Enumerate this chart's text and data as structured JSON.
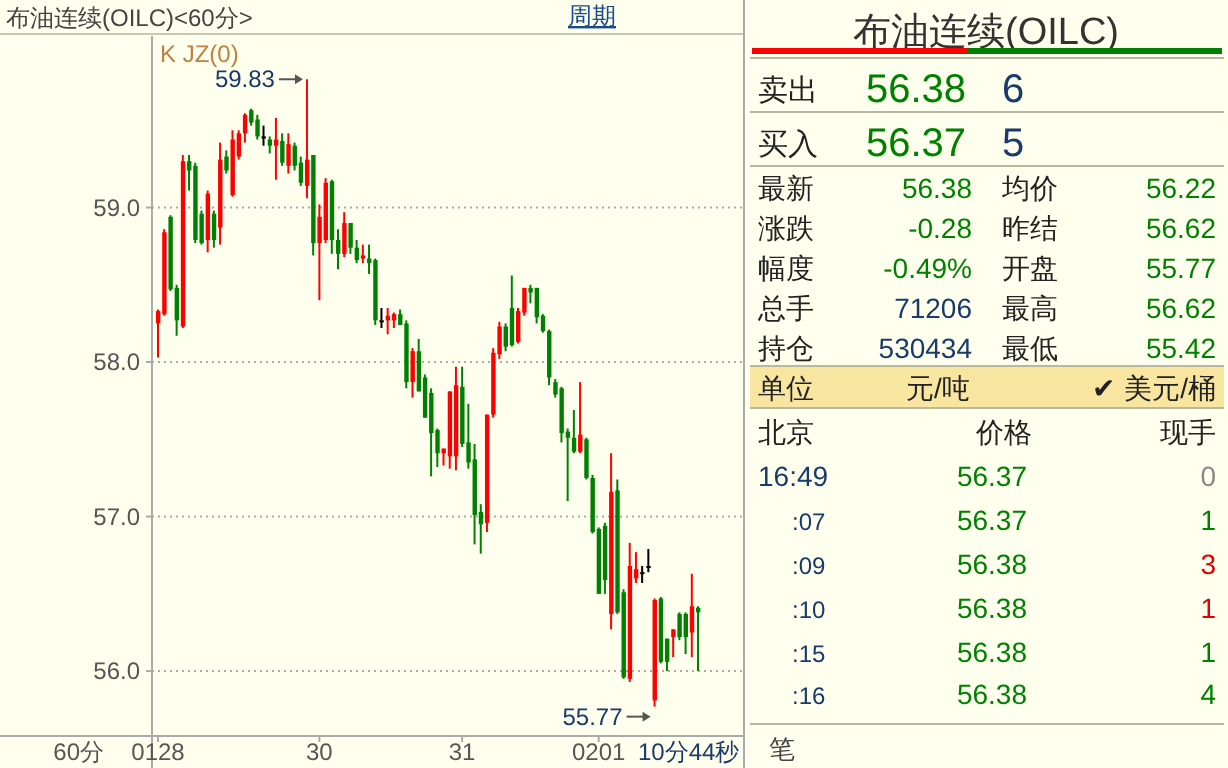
{
  "chart_data": [
    {
      "type": "candlestick",
      "title": "布油连续(OILC)<60分>",
      "categories": [
        "0128",
        null,
        null,
        null,
        null,
        null,
        null,
        null,
        null,
        null,
        null,
        null,
        null,
        null,
        null,
        null,
        null,
        null,
        null,
        null,
        null,
        null,
        null,
        null,
        null,
        null,
        "30",
        null,
        null,
        null,
        null,
        null,
        null,
        null,
        null,
        null,
        null,
        null,
        null,
        null,
        null,
        null,
        null,
        null,
        null,
        null,
        null,
        null,
        null,
        "31",
        null,
        null,
        null,
        null,
        null,
        null,
        null,
        null,
        null,
        null,
        null,
        null,
        null,
        null,
        null,
        null,
        null,
        null,
        null,
        null,
        null,
        "0201",
        null,
        null,
        null,
        null,
        null,
        null,
        null,
        null,
        null,
        null,
        null,
        null,
        null,
        null,
        null,
        null
      ],
      "ohlc": [
        [
          58.25,
          58.34,
          58.03,
          58.33
        ],
        [
          58.31,
          58.86,
          58.3,
          58.84
        ],
        [
          58.94,
          58.95,
          58.46,
          58.47
        ],
        [
          58.48,
          58.5,
          58.17,
          58.27
        ],
        [
          58.23,
          59.34,
          58.22,
          59.3
        ],
        [
          59.3,
          59.34,
          59.11,
          59.24
        ],
        [
          59.27,
          59.29,
          58.77,
          58.79
        ],
        [
          58.96,
          58.98,
          58.76,
          58.77
        ],
        [
          58.79,
          59.11,
          58.71,
          59.09
        ],
        [
          58.96,
          58.98,
          58.74,
          58.79
        ],
        [
          58.87,
          59.42,
          58.76,
          59.31
        ],
        [
          59.33,
          59.37,
          59.22,
          59.24
        ],
        [
          59.08,
          59.5,
          59.07,
          59.44
        ],
        [
          59.33,
          59.5,
          59.31,
          59.48
        ],
        [
          59.48,
          59.61,
          59.42,
          59.6
        ],
        [
          59.63,
          59.64,
          59.53,
          59.55
        ],
        [
          59.57,
          59.6,
          59.44,
          59.46
        ],
        [
          59.46,
          59.53,
          59.4,
          59.46
        ],
        [
          59.44,
          59.46,
          59.35,
          59.4
        ],
        [
          59.4,
          59.58,
          59.18,
          59.44
        ],
        [
          59.43,
          59.48,
          59.27,
          59.29
        ],
        [
          59.27,
          59.48,
          59.22,
          59.41
        ],
        [
          59.4,
          59.42,
          59.24,
          59.27
        ],
        [
          59.29,
          59.33,
          59.14,
          59.16
        ],
        [
          59.14,
          59.83,
          59.06,
          59.31
        ],
        [
          59.34,
          59.34,
          58.69,
          58.77
        ],
        [
          58.77,
          59.02,
          58.4,
          58.94
        ],
        [
          58.79,
          59.19,
          58.77,
          59.16
        ],
        [
          59.17,
          59.18,
          58.7,
          58.79
        ],
        [
          58.79,
          58.86,
          58.6,
          58.7
        ],
        [
          58.7,
          58.97,
          58.68,
          58.9
        ],
        [
          58.9,
          58.9,
          58.7,
          58.74
        ],
        [
          58.74,
          58.79,
          58.64,
          58.66
        ],
        [
          58.67,
          58.76,
          58.64,
          58.69
        ],
        [
          58.67,
          58.76,
          58.57,
          58.64
        ],
        [
          58.66,
          58.67,
          58.24,
          58.27
        ],
        [
          58.27,
          58.35,
          58.22,
          58.27
        ],
        [
          58.27,
          58.35,
          58.18,
          58.3
        ],
        [
          58.27,
          58.32,
          58.22,
          58.31
        ],
        [
          58.31,
          58.34,
          58.24,
          58.24
        ],
        [
          58.25,
          58.27,
          57.83,
          57.87
        ],
        [
          57.87,
          58.09,
          57.77,
          58.07
        ],
        [
          58.07,
          58.15,
          57.81,
          57.81
        ],
        [
          57.9,
          57.92,
          57.64,
          57.64
        ],
        [
          57.8,
          57.83,
          57.26,
          57.54
        ],
        [
          57.56,
          57.57,
          57.32,
          57.41
        ],
        [
          57.41,
          57.44,
          57.33,
          57.44
        ],
        [
          57.39,
          57.81,
          57.31,
          57.81
        ],
        [
          57.39,
          57.97,
          57.3,
          57.85
        ],
        [
          57.84,
          57.97,
          57.45,
          57.47
        ],
        [
          57.48,
          57.73,
          57.31,
          57.35
        ],
        [
          57.37,
          57.47,
          56.82,
          57.01
        ],
        [
          57.03,
          57.08,
          56.76,
          56.95
        ],
        [
          56.96,
          57.66,
          56.9,
          57.66
        ],
        [
          57.66,
          58.09,
          57.64,
          58.06
        ],
        [
          58.05,
          58.26,
          58.02,
          58.23
        ],
        [
          58.23,
          58.25,
          58.07,
          58.1
        ],
        [
          58.35,
          58.56,
          58.1,
          58.11
        ],
        [
          58.13,
          58.35,
          58.12,
          58.33
        ],
        [
          58.32,
          58.48,
          58.3,
          58.48
        ],
        [
          58.48,
          58.5,
          58.38,
          58.45
        ],
        [
          58.48,
          58.48,
          58.25,
          58.29
        ],
        [
          58.3,
          58.31,
          58.19,
          58.2
        ],
        [
          58.2,
          58.21,
          57.85,
          57.9
        ],
        [
          57.87,
          57.89,
          57.77,
          57.79
        ],
        [
          57.83,
          57.84,
          57.48,
          57.54
        ],
        [
          57.55,
          57.57,
          57.1,
          57.51
        ],
        [
          57.51,
          57.69,
          57.41,
          57.42
        ],
        [
          57.42,
          57.87,
          57.41,
          57.53
        ],
        [
          57.5,
          57.51,
          57.24,
          57.25
        ],
        [
          57.25,
          57.27,
          56.89,
          56.9
        ],
        [
          56.92,
          56.93,
          56.5,
          56.5
        ],
        [
          56.94,
          56.96,
          56.5,
          56.59
        ],
        [
          56.37,
          57.41,
          56.27,
          57.16
        ],
        [
          57.17,
          57.24,
          56.37,
          56.38
        ],
        [
          56.51,
          56.53,
          55.95,
          55.96
        ],
        [
          55.95,
          56.83,
          55.93,
          56.68
        ],
        [
          56.6,
          56.77,
          56.57,
          56.66
        ],
        [
          56.64,
          56.68,
          56.57,
          56.64
        ],
        [
          56.68,
          56.79,
          56.64,
          56.68
        ],
        [
          55.81,
          56.47,
          55.77,
          56.46
        ],
        [
          56.47,
          56.48,
          56.05,
          56.06
        ],
        [
          56.21,
          56.21,
          56.0,
          56.06
        ],
        [
          56.22,
          56.27,
          56.09,
          56.27
        ],
        [
          56.37,
          56.38,
          56.2,
          56.22
        ],
        [
          56.37,
          56.38,
          56.11,
          56.22
        ],
        [
          56.25,
          56.63,
          56.09,
          56.42
        ],
        [
          56.41,
          56.42,
          56.0,
          56.38
        ]
      ],
      "colors": [
        "#ff0000",
        "#ff0000",
        "#008000",
        "#008000",
        "#ff0000",
        "#008000",
        "#008000",
        "#008000",
        "#ff0000",
        "#008000",
        "#ff0000",
        "#008000",
        "#ff0000",
        "#ff0000",
        "#ff0000",
        "#008000",
        "#008000",
        "#000000",
        "#008000",
        "#ff0000",
        "#008000",
        "#ff0000",
        "#008000",
        "#008000",
        "#ff0000",
        "#008000",
        "#ff0000",
        "#ff0000",
        "#008000",
        "#008000",
        "#ff0000",
        "#008000",
        "#008000",
        "#ff0000",
        "#008000",
        "#008000",
        "#000000",
        "#ff0000",
        "#ff0000",
        "#008000",
        "#008000",
        "#ff0000",
        "#008000",
        "#008000",
        "#008000",
        "#008000",
        "#ff0000",
        "#ff0000",
        "#ff0000",
        "#008000",
        "#008000",
        "#008000",
        "#008000",
        "#ff0000",
        "#ff0000",
        "#ff0000",
        "#008000",
        "#008000",
        "#ff0000",
        "#ff0000",
        "#008000",
        "#008000",
        "#008000",
        "#008000",
        "#008000",
        "#008000",
        "#008000",
        "#008000",
        "#ff0000",
        "#008000",
        "#008000",
        "#008000",
        "#008000",
        "#ff0000",
        "#008000",
        "#008000",
        "#ff0000",
        "#ff0000",
        "#000000",
        "#000000",
        "#ff0000",
        "#008000",
        "#008000",
        "#ff0000",
        "#008000",
        "#008000",
        "#ff0000",
        "#008000"
      ],
      "ylim": [
        55.58,
        60.11
      ],
      "yticks": [
        {
          "value": 56,
          "label": "56.0"
        },
        {
          "value": 57,
          "label": "57.0"
        },
        {
          "value": 58,
          "label": "58.0"
        },
        {
          "value": 59,
          "label": "59.0"
        }
      ],
      "grid": "y",
      "annotations": [
        "K JZ(0)",
        "59.83",
        "55.77",
        "10分44秒",
        "60分",
        "周期"
      ]
    },
    {
      "type": "other",
      "title": "布油连续(OILC)",
      "annotations": [
        "卖出",
        "56.38",
        "6",
        "买入",
        "56.37",
        "5",
        "最新",
        "56.38",
        "均价",
        "56.22",
        "涨跌",
        "-0.28",
        "昨结",
        "56.62",
        "幅度",
        "-0.49%",
        "开盘",
        "55.77",
        "总手",
        "71206",
        "最高",
        "56.62",
        "持仓",
        "530434",
        "最低",
        "55.42",
        "单位",
        "元/吨",
        "✔ 美元/桶",
        "北京",
        "价格",
        "现手",
        "16:49",
        "56.37",
        "0",
        ":07",
        "56.37",
        "1",
        ":09",
        "56.38",
        "3",
        ":10",
        "56.38",
        "1",
        ":15",
        "56.38",
        "1",
        ":16",
        "56.38",
        "4",
        "笔"
      ]
    }
  ]
}
